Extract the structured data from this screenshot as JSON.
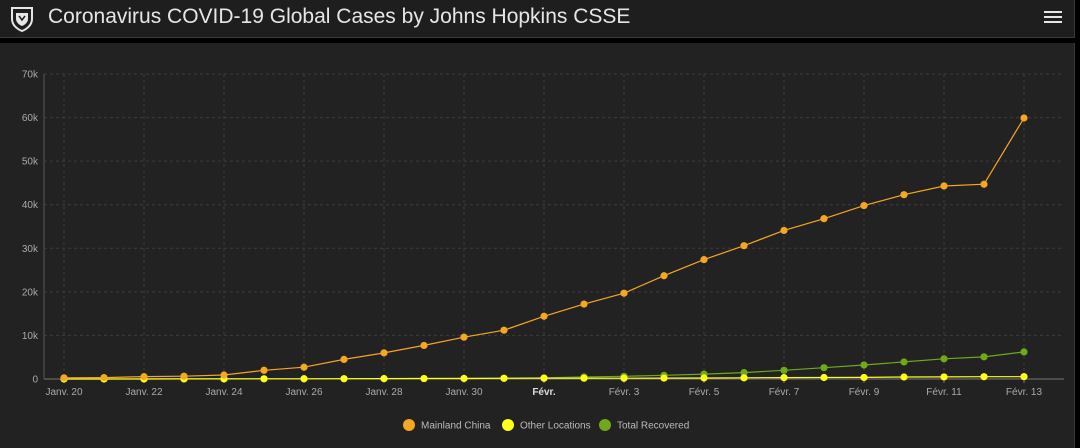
{
  "header": {
    "title": "Coronavirus COVID-19 Global Cases by Johns Hopkins CSSE",
    "logo_icon": "university-shield-icon",
    "menu_icon": "hamburger-menu-icon"
  },
  "chart_data": {
    "type": "line",
    "title": "",
    "xlabel": "",
    "ylabel": "",
    "x": [
      "2020-01-20",
      "2020-01-21",
      "2020-01-22",
      "2020-01-23",
      "2020-01-24",
      "2020-01-25",
      "2020-01-26",
      "2020-01-27",
      "2020-01-28",
      "2020-01-29",
      "2020-01-30",
      "2020-01-31",
      "2020-02-01",
      "2020-02-02",
      "2020-02-03",
      "2020-02-04",
      "2020-02-05",
      "2020-02-06",
      "2020-02-07",
      "2020-02-08",
      "2020-02-09",
      "2020-02-10",
      "2020-02-11",
      "2020-02-12",
      "2020-02-13"
    ],
    "xticks": [
      {
        "label": "Janv. 20",
        "index": 0,
        "bold": false
      },
      {
        "label": "Janv. 22",
        "index": 2,
        "bold": false
      },
      {
        "label": "Janv. 24",
        "index": 4,
        "bold": false
      },
      {
        "label": "Janv. 26",
        "index": 6,
        "bold": false
      },
      {
        "label": "Janv. 28",
        "index": 8,
        "bold": false
      },
      {
        "label": "Janv. 30",
        "index": 10,
        "bold": false
      },
      {
        "label": "Févr.",
        "index": 12,
        "bold": true
      },
      {
        "label": "Févr. 3",
        "index": 14,
        "bold": false
      },
      {
        "label": "Févr. 5",
        "index": 16,
        "bold": false
      },
      {
        "label": "Févr. 7",
        "index": 18,
        "bold": false
      },
      {
        "label": "Févr. 9",
        "index": 20,
        "bold": false
      },
      {
        "label": "Févr. 11",
        "index": 22,
        "bold": false
      },
      {
        "label": "Févr. 13",
        "index": 24,
        "bold": false
      }
    ],
    "ylim": [
      0,
      70000
    ],
    "yticks": [
      {
        "value": 0,
        "label": "0"
      },
      {
        "value": 10000,
        "label": "10k"
      },
      {
        "value": 20000,
        "label": "20k"
      },
      {
        "value": 30000,
        "label": "30k"
      },
      {
        "value": 40000,
        "label": "40k"
      },
      {
        "value": 50000,
        "label": "50k"
      },
      {
        "value": 60000,
        "label": "60k"
      },
      {
        "value": 70000,
        "label": "70k"
      }
    ],
    "grid": true,
    "legend_position": "bottom-center",
    "series": [
      {
        "name": "Mainland China",
        "color": "#f5a623",
        "values": [
          278,
          326,
          547,
          639,
          916,
          2000,
          2700,
          4500,
          6000,
          7700,
          9600,
          11200,
          14400,
          17200,
          19700,
          23700,
          27400,
          30600,
          34100,
          36800,
          39800,
          42300,
          44300,
          44700,
          59900
        ]
      },
      {
        "name": "Other Locations",
        "color": "#ffff1a",
        "values": [
          4,
          6,
          8,
          14,
          25,
          40,
          57,
          64,
          87,
          105,
          118,
          153,
          173,
          183,
          188,
          212,
          227,
          265,
          317,
          343,
          361,
          457,
          476,
          523,
          538
        ]
      },
      {
        "name": "Total Recovered",
        "color": "#70a81c",
        "values": [
          0,
          0,
          28,
          30,
          36,
          39,
          49,
          58,
          101,
          120,
          135,
          214,
          275,
          463,
          614,
          843,
          1115,
          1477,
          1999,
          2596,
          3219,
          3918,
          4636,
          5082,
          6217
        ]
      }
    ]
  }
}
